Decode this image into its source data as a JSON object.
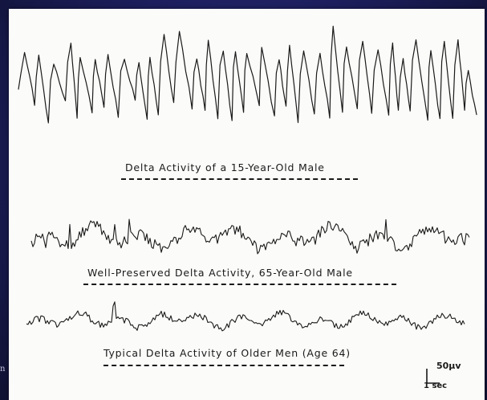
{
  "captions": {
    "trace1": "Delta Activity of a 15-Year-Old Male",
    "trace2": "Well-Preserved Delta Activity, 65-Year-Old Male",
    "trace3": "Typical Delta Activity of Older Men (Age 64)"
  },
  "scale_bar": {
    "amplitude": "50µv",
    "time": "1 sec"
  },
  "stray_text": "n",
  "colors": {
    "background": "#1c1e5c",
    "panel": "#fbfbf9",
    "ink": "#1a1a1a"
  }
}
